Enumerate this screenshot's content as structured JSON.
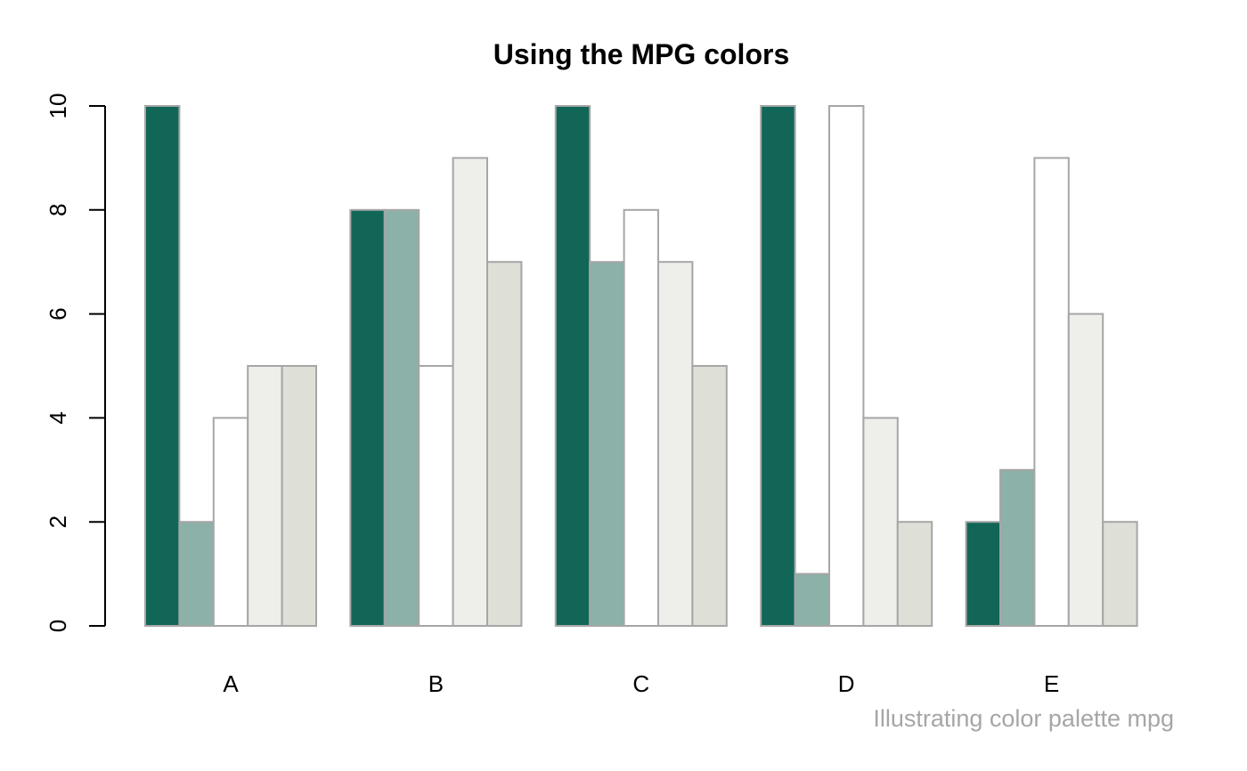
{
  "chart_data": {
    "type": "bar",
    "title": "Using the MPG colors",
    "caption": "Illustrating color palette mpg",
    "xlabel": "",
    "ylabel": "",
    "categories": [
      "A",
      "B",
      "C",
      "D",
      "E"
    ],
    "ylim": [
      0,
      10
    ],
    "yticks": [
      "0",
      "2",
      "4",
      "6",
      "8",
      "10"
    ],
    "grid": false,
    "legend": "none",
    "bar_border_color": "#a6a6a6",
    "series": [
      {
        "color": "#126657",
        "values": [
          10,
          8,
          10,
          10,
          2
        ]
      },
      {
        "color": "#8bb1a9",
        "values": [
          2,
          8,
          7,
          1,
          3
        ]
      },
      {
        "color": "#ffffff",
        "values": [
          4,
          5,
          8,
          10,
          9
        ]
      },
      {
        "color": "#eeeeea",
        "values": [
          5,
          9,
          7,
          4,
          6
        ]
      },
      {
        "color": "#dedfd7",
        "values": [
          5,
          7,
          5,
          2,
          2
        ]
      }
    ]
  }
}
